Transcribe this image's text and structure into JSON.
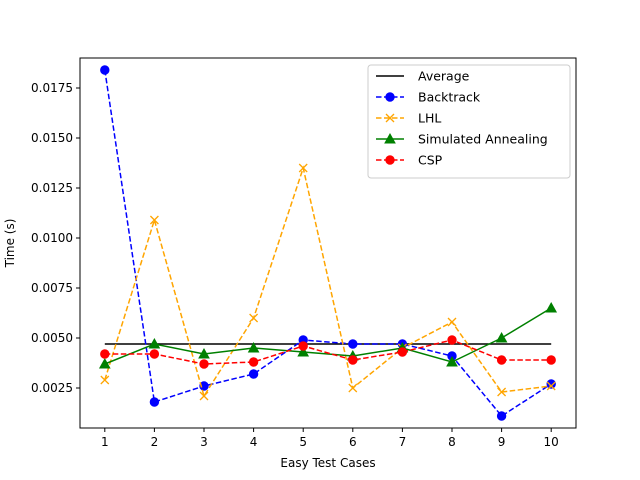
{
  "chart_data": {
    "type": "line",
    "title": "",
    "xlabel": "Easy Test Cases",
    "ylabel": "Time (s)",
    "x": [
      1,
      2,
      3,
      4,
      5,
      6,
      7,
      8,
      9,
      10
    ],
    "xlim": [
      0.5,
      10.5
    ],
    "ylim": [
      0.0005,
      0.019
    ],
    "yticks": [
      "0.0025",
      "0.0050",
      "0.0075",
      "0.0100",
      "0.0125",
      "0.0150",
      "0.0175"
    ],
    "xticks": [
      "1",
      "2",
      "3",
      "4",
      "5",
      "6",
      "7",
      "8",
      "9",
      "10"
    ],
    "grid": false,
    "legend_position": "top-right",
    "series": [
      {
        "name": "Average",
        "color": "#000000",
        "style": "solid",
        "marker": "none",
        "values": [
          0.0047,
          0.0047,
          0.0047,
          0.0047,
          0.0047,
          0.0047,
          0.0047,
          0.0047,
          0.0047,
          0.0047
        ]
      },
      {
        "name": "Backtrack",
        "color": "#0000ff",
        "style": "dashed",
        "marker": "circle",
        "values": [
          0.0184,
          0.0018,
          0.0026,
          0.0032,
          0.0049,
          0.0047,
          0.0047,
          0.0041,
          0.0011,
          0.0027
        ]
      },
      {
        "name": "LHL",
        "color": "#ffa500",
        "style": "dashed",
        "marker": "x",
        "values": [
          0.0029,
          0.0109,
          0.0021,
          0.006,
          0.0135,
          0.0025,
          0.0045,
          0.0058,
          0.0023,
          0.0026
        ]
      },
      {
        "name": "Simulated Annealing",
        "color": "#008000",
        "style": "solid",
        "marker": "triangle",
        "values": [
          0.0037,
          0.0047,
          0.0042,
          0.0045,
          0.0043,
          0.0041,
          0.0045,
          0.0038,
          0.005,
          0.0065
        ]
      },
      {
        "name": "CSP",
        "color": "#ff0000",
        "style": "dashed",
        "marker": "circle",
        "values": [
          0.0042,
          0.0042,
          0.0037,
          0.0038,
          0.0046,
          0.0039,
          0.0043,
          0.0049,
          0.0039,
          0.0039
        ]
      }
    ]
  }
}
